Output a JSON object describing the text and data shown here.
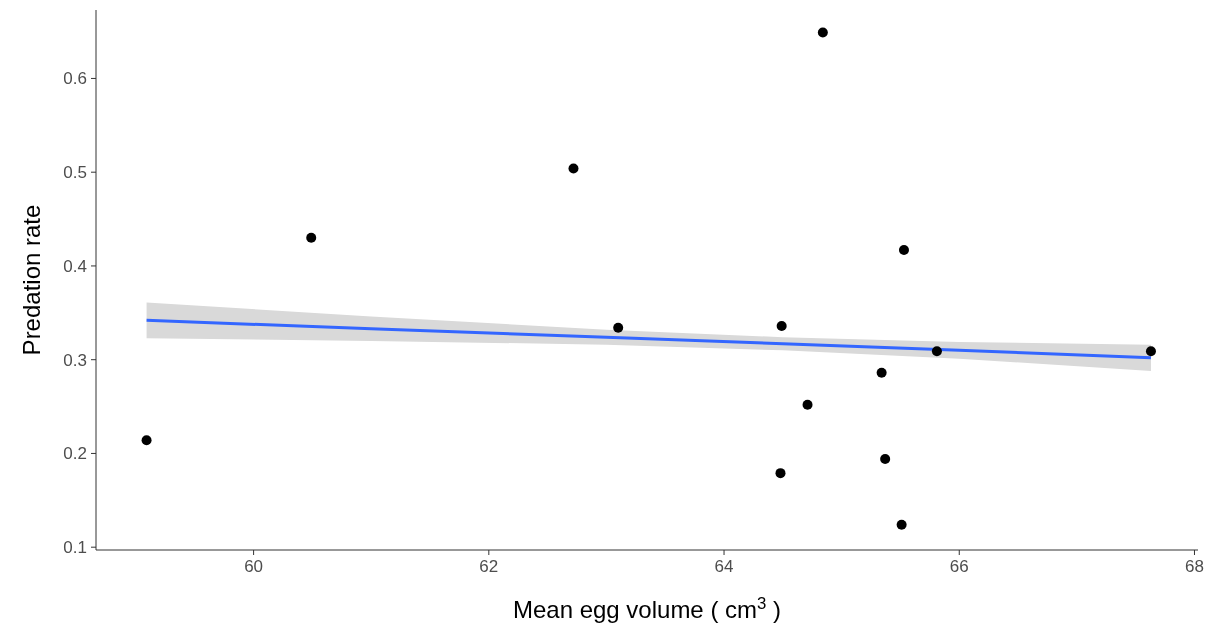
{
  "chart_data": {
    "type": "scatter",
    "xlabel": "Mean egg volume ( cm$^{3}$ )",
    "ylabel": "Predation rate",
    "xlim": [
      58.66,
      68.03
    ],
    "ylim": [
      0.097,
      0.673
    ],
    "xticks": [
      60,
      62,
      64,
      66,
      68
    ],
    "yticks": [
      0.1,
      0.2,
      0.3,
      0.4,
      0.5,
      0.6
    ],
    "grid": false,
    "series": [
      {
        "marker": "circle",
        "color": "#000000",
        "x": [
          59.09,
          60.49,
          62.72,
          63.1,
          64.48,
          64.49,
          64.71,
          64.84,
          65.34,
          65.37,
          65.51,
          65.53,
          65.81,
          67.63
        ],
        "values": [
          0.214,
          0.43,
          0.504,
          0.334,
          0.179,
          0.336,
          0.252,
          0.649,
          0.286,
          0.194,
          0.124,
          0.417,
          0.309,
          0.309
        ]
      },
      {
        "type": "line",
        "color": "#3366ff",
        "x": [
          59.09,
          61,
          63,
          64.5,
          66,
          67.63
        ],
        "values": [
          0.342,
          0.333,
          0.324,
          0.317,
          0.31,
          0.302
        ],
        "lower": [
          0.323,
          0.32,
          0.316,
          0.31,
          0.301,
          0.288
        ],
        "upper": [
          0.361,
          0.346,
          0.332,
          0.324,
          0.319,
          0.316
        ]
      }
    ]
  }
}
